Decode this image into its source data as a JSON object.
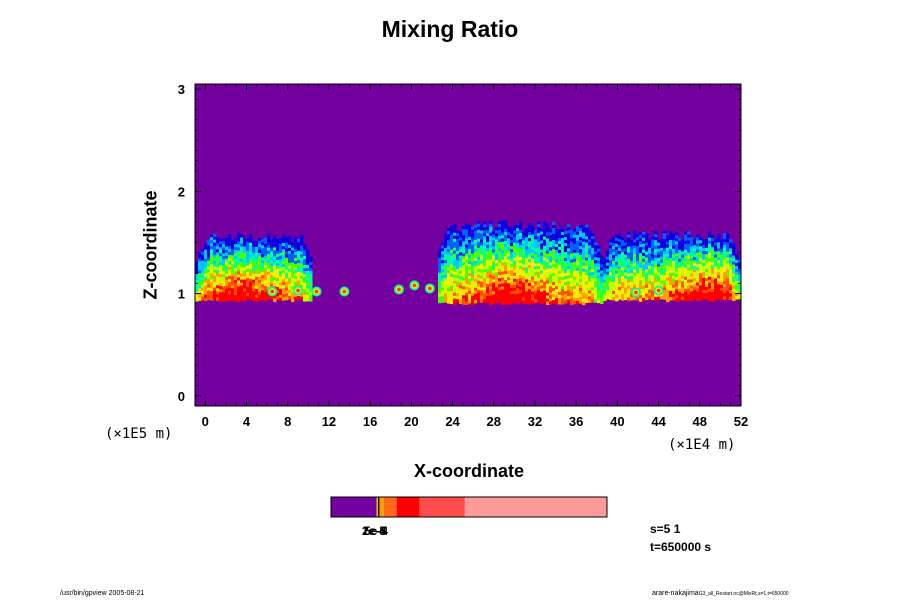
{
  "chart_data": {
    "type": "heatmap",
    "title": "Mixing Ratio",
    "xlabel": "X-coordinate",
    "ylabel": "Z-coordinate",
    "x_unit": "(×1E4 m)",
    "y_unit": "(×1E5 m)",
    "xlim": [
      -1,
      52
    ],
    "ylim": [
      -0.1,
      3.05
    ],
    "x_ticks": [
      "0",
      "4",
      "8",
      "12",
      "16",
      "20",
      "24",
      "28",
      "32",
      "36",
      "40",
      "44",
      "48",
      "52"
    ],
    "y_ticks": [
      "0",
      "1",
      "2",
      "3"
    ],
    "background_color": "#7500a0",
    "colormap": [
      "#7500a0",
      "#1000e0",
      "#0060ff",
      "#00c8ff",
      "#00ff9a",
      "#4cff00",
      "#c8ff00",
      "#ffea00",
      "#ffa000",
      "#ff5000",
      "#ff0000"
    ],
    "cloud_bands": [
      {
        "x0": -1,
        "x1": 10.5,
        "top": 1.6,
        "bottom": 0.98,
        "core_center": 3.5,
        "core_width": 3.5
      },
      {
        "x0": 22.5,
        "x1": 38.5,
        "top": 1.72,
        "bottom": 0.95,
        "core_center": 29.5,
        "core_width": 3.5
      },
      {
        "x0": 38.5,
        "x1": 52,
        "top": 1.62,
        "bottom": 0.98,
        "core_center": 49,
        "core_width": 3.5
      }
    ],
    "isolated_cells": [
      {
        "x": 6.5,
        "z": 1.02
      },
      {
        "x": 9.0,
        "z": 1.03
      },
      {
        "x": 10.8,
        "z": 1.02
      },
      {
        "x": 13.5,
        "z": 1.02
      },
      {
        "x": 18.8,
        "z": 1.04
      },
      {
        "x": 20.3,
        "z": 1.08
      },
      {
        "x": 21.8,
        "z": 1.05
      },
      {
        "x": 41.8,
        "z": 1.01
      },
      {
        "x": 44.0,
        "z": 1.03
      }
    ],
    "colorbar": {
      "segments": [
        {
          "width": 16,
          "color": "#7500a0"
        },
        {
          "width": 0.5,
          "color": "#f5c400"
        },
        {
          "width": 0.6,
          "color": "#1a1a1a"
        },
        {
          "width": 1.5,
          "color": "#ff9a00"
        },
        {
          "width": 4.5,
          "color": "#ff6a1a"
        },
        {
          "width": 8,
          "color": "#ff0000"
        },
        {
          "width": 16,
          "color": "#ff4b4b"
        },
        {
          "width": 50,
          "color": "#ff9a9a"
        }
      ],
      "labels": [
        "1e-5",
        "2e-4",
        "5e-4"
      ]
    }
  },
  "annotations": {
    "step": "s=5 1",
    "time": "t=650000 s"
  },
  "footer": {
    "left": "/usr/bin/gpview 2005-08-21",
    "right": "arare-nakajima",
    "right_small": "G3_all_Restart.nc@MixRt,s=1,t=650000"
  }
}
